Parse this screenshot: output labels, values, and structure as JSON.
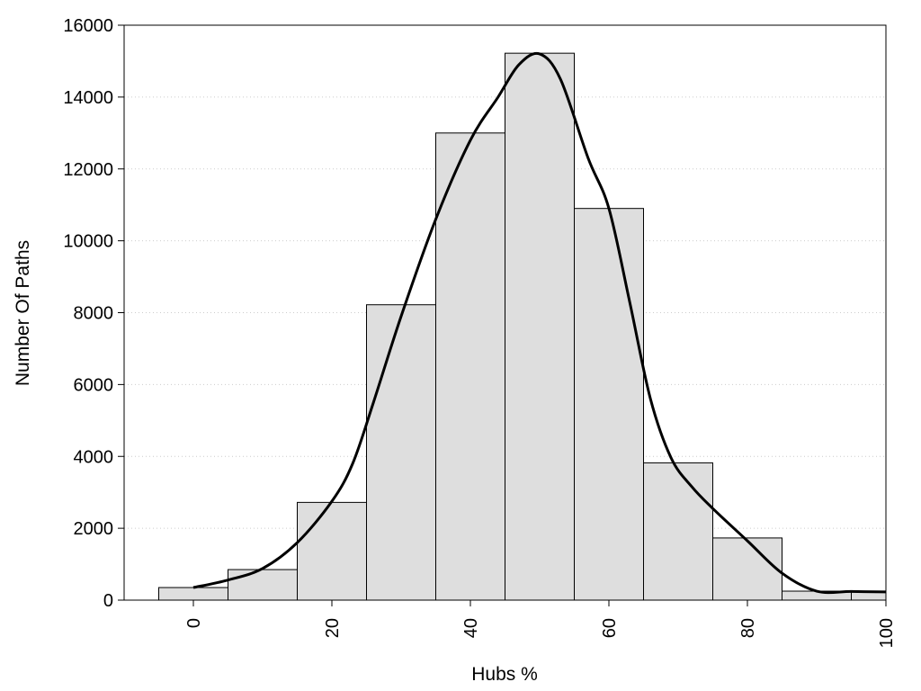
{
  "chart_data": {
    "type": "bar",
    "xlabel": "Hubs %",
    "ylabel": "Number Of Paths",
    "xlim": [
      -10,
      100
    ],
    "ylim": [
      0,
      16000
    ],
    "grid": true,
    "bin_width": 10,
    "x_ticks": [
      0,
      20,
      40,
      60,
      80,
      100
    ],
    "y_ticks": [
      0,
      2000,
      4000,
      6000,
      8000,
      10000,
      12000,
      14000,
      16000
    ],
    "bins": [
      {
        "x": 0,
        "value": 350
      },
      {
        "x": 10,
        "value": 850
      },
      {
        "x": 20,
        "value": 2720
      },
      {
        "x": 30,
        "value": 8220
      },
      {
        "x": 40,
        "value": 13000
      },
      {
        "x": 50,
        "value": 15220
      },
      {
        "x": 60,
        "value": 10900
      },
      {
        "x": 70,
        "value": 3820
      },
      {
        "x": 80,
        "value": 1730
      },
      {
        "x": 90,
        "value": 250
      },
      {
        "x": 100,
        "value": 230
      }
    ],
    "density_curve": [
      {
        "x": 0,
        "y": 350
      },
      {
        "x": 5,
        "y": 560
      },
      {
        "x": 10,
        "y": 880
      },
      {
        "x": 15,
        "y": 1600
      },
      {
        "x": 20,
        "y": 2750
      },
      {
        "x": 23,
        "y": 3800
      },
      {
        "x": 26,
        "y": 5500
      },
      {
        "x": 30,
        "y": 7900
      },
      {
        "x": 35,
        "y": 10600
      },
      {
        "x": 40,
        "y": 12800
      },
      {
        "x": 44,
        "y": 14000
      },
      {
        "x": 47,
        "y": 14900
      },
      {
        "x": 50,
        "y": 15200
      },
      {
        "x": 53,
        "y": 14500
      },
      {
        "x": 57,
        "y": 12300
      },
      {
        "x": 60,
        "y": 10900
      },
      {
        "x": 63,
        "y": 8300
      },
      {
        "x": 66,
        "y": 5600
      },
      {
        "x": 69,
        "y": 3950
      },
      {
        "x": 72,
        "y": 3150
      },
      {
        "x": 75,
        "y": 2550
      },
      {
        "x": 80,
        "y": 1650
      },
      {
        "x": 85,
        "y": 750
      },
      {
        "x": 90,
        "y": 250
      },
      {
        "x": 95,
        "y": 240
      },
      {
        "x": 100,
        "y": 230
      }
    ],
    "colors": {
      "bar_fill": "#dedede",
      "bar_stroke": "#000000",
      "curve": "#000000",
      "grid": "#cccccc"
    }
  }
}
